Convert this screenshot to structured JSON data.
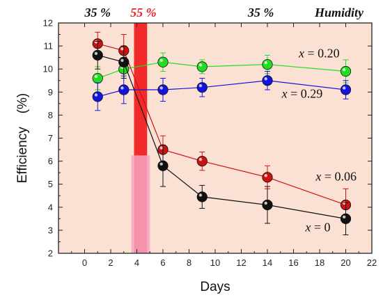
{
  "chart_data": {
    "type": "line",
    "xlabel": "Days",
    "ylabel": "Efficiency　(%)",
    "xlim": [
      -2,
      22
    ],
    "ylim": [
      2,
      12
    ],
    "x_ticks": [
      0,
      2,
      4,
      6,
      8,
      10,
      12,
      14,
      16,
      18,
      20,
      22
    ],
    "y_ticks": [
      2,
      3,
      4,
      5,
      6,
      7,
      8,
      9,
      10,
      11,
      12
    ],
    "grid": false,
    "humidity": {
      "title": "Humidity",
      "periods": [
        {
          "label": "35 %",
          "x_start": -2,
          "x_end": 4,
          "label_x": 1
        },
        {
          "label": "55 %",
          "x_start": 4,
          "x_end": 5,
          "label_x": 4.5
        },
        {
          "label": "35 %",
          "x_start": 5,
          "x_end": 22,
          "label_x": 13.5
        }
      ],
      "colors": {
        "low": "#fbe1d3",
        "high": "#f22a2a",
        "high_overlay": "#f6a6c4"
      }
    },
    "series": [
      {
        "name": "x = 0.20",
        "color": "#22dd22",
        "x": [
          1,
          3,
          6,
          9,
          14,
          20
        ],
        "y": [
          9.6,
          10.0,
          10.3,
          10.1,
          10.2,
          9.9
        ],
        "err": [
          0.5,
          0.4,
          0.4,
          0.3,
          0.4,
          0.5
        ],
        "label_pos": {
          "x": 16.4,
          "y": 10.5
        }
      },
      {
        "name": "x = 0.29",
        "color": "#1414dd",
        "x": [
          1,
          3,
          6,
          9,
          14,
          20
        ],
        "y": [
          8.8,
          9.1,
          9.1,
          9.2,
          9.5,
          9.1
        ],
        "err": [
          0.6,
          0.6,
          0.5,
          0.4,
          0.4,
          0.4
        ],
        "label_pos": {
          "x": 15.1,
          "y": 8.75
        }
      },
      {
        "name": "x = 0.06",
        "color": "#cc1111",
        "x": [
          1,
          3,
          6,
          9,
          14,
          20
        ],
        "y": [
          11.1,
          10.8,
          6.5,
          6.0,
          5.3,
          4.1
        ],
        "err": [
          0.5,
          0.7,
          0.6,
          0.4,
          0.5,
          0.7
        ],
        "label_pos": {
          "x": 17.7,
          "y": 5.15
        }
      },
      {
        "name": "x = 0",
        "color": "#111111",
        "x": [
          1,
          3,
          6,
          9,
          14,
          20
        ],
        "y": [
          10.6,
          10.3,
          5.8,
          4.45,
          4.1,
          3.5
        ],
        "err": [
          0.6,
          0.7,
          0.9,
          0.5,
          0.8,
          0.7
        ],
        "label_pos": {
          "x": 16.9,
          "y": 2.95
        }
      }
    ]
  }
}
